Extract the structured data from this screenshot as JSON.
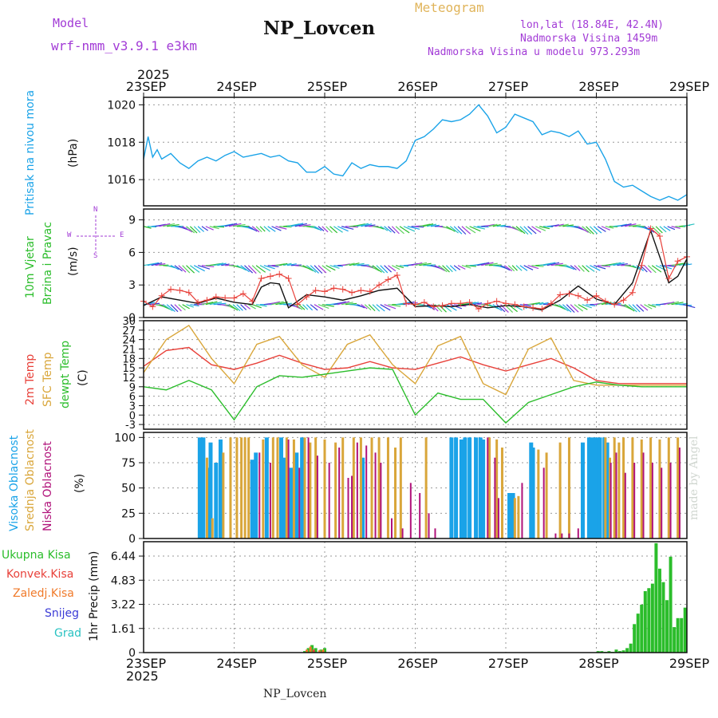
{
  "header": {
    "model_label": "Model",
    "model_name": "wrf-nmm_v3.9.1 e3km",
    "title": "NP_Lovcen",
    "subtitle": "Meteogram",
    "lonlat": "lon,lat (18.84E, 42.4N)",
    "altitude": "Nadmorska Visina 1459m",
    "altitude_model": "Nadmorska Visina u modelu 973.293m",
    "year_top": "2025",
    "year_bottom": "2025",
    "footer_station": "NP_Lovcen",
    "watermark": "made by Angel"
  },
  "colors": {
    "pressure": "#1aa3e8",
    "temp2m": "#e8413a",
    "sfc": "#d9a63a",
    "dewpt": "#2bbd2b",
    "wind_obs": "#111111",
    "wind_model": "#e8413a",
    "high_cloud": "#1aa3e8",
    "mid_cloud": "#d9a63a",
    "low_cloud": "#b0127a",
    "total_precip": "#2bbd2b",
    "conv_precip": "#e8413a",
    "frz_precip": "#f07a2a",
    "snow": "#3b3bd6",
    "graupel": "#29c2c2",
    "header_purple": "#a23bd6",
    "header_gold": "#e0b45a"
  },
  "time_axis": {
    "top_labels": [
      "23SEP",
      "24SEP",
      "25SEP",
      "26SEP",
      "27SEP",
      "28SEP",
      "29SEP"
    ],
    "bottom_labels": [
      "23SEP",
      "24SEP",
      "25SEP",
      "26SEP",
      "27SEP",
      "28SEP",
      "29SEP"
    ],
    "days": 6
  },
  "panels": {
    "pressure": {
      "ylabel_outer": "Pritisak na nivou mora",
      "ylabel_unit": "(hPa)",
      "ticks": [
        "1016",
        "1018",
        "1020"
      ]
    },
    "wind": {
      "ylabel_outer1": "10m Vjetar",
      "ylabel_outer2": "Brzina i Pravac",
      "ylabel_unit": "(m/s)",
      "ticks": [
        "0",
        "3",
        "6",
        "9"
      ],
      "compass_n": "N",
      "compass_s": "S",
      "compass_w": "W",
      "compass_e": "E"
    },
    "temp": {
      "ylabel_2m": "2m Temp",
      "ylabel_sfc": "SFC Temp",
      "ylabel_dew": "dewpt Temp",
      "ylabel_unit": "(C)",
      "ticks": [
        "-3",
        "0",
        "3",
        "6",
        "9",
        "12",
        "15",
        "18",
        "21",
        "24",
        "27",
        "30"
      ]
    },
    "cloud": {
      "ylabel_high": "Visoka Oblacnost",
      "ylabel_mid": "Srednja Oblacnost",
      "ylabel_low": "Niska Oblacnost",
      "ylabel_unit": "(%)",
      "ticks": [
        "0",
        "25",
        "50",
        "75",
        "100"
      ]
    },
    "precip": {
      "ylabel_unit": "1hr Precip (mm)",
      "ticks": [
        "0",
        "1.61",
        "3.22",
        "4.83",
        "6.44"
      ],
      "legend": [
        "Ukupna Kisa",
        "Konvek.Kisa",
        "Zaledj.Kisa",
        "Snijeg",
        "Grad"
      ]
    }
  },
  "chart_data": [
    {
      "type": "line",
      "title": "Pritisak na nivou mora",
      "ylabel": "(hPa)",
      "ylim": [
        1014.6,
        1020.4
      ],
      "x_days": [
        0,
        0.05,
        0.1,
        0.15,
        0.2,
        0.3,
        0.4,
        0.5,
        0.6,
        0.7,
        0.8,
        0.9,
        1.0,
        1.1,
        1.2,
        1.3,
        1.4,
        1.5,
        1.6,
        1.7,
        1.8,
        1.9,
        2.0,
        2.1,
        2.2,
        2.3,
        2.4,
        2.5,
        2.6,
        2.7,
        2.8,
        2.9,
        3.0,
        3.1,
        3.2,
        3.3,
        3.4,
        3.5,
        3.6,
        3.7,
        3.8,
        3.9,
        4.0,
        4.1,
        4.2,
        4.3,
        4.4,
        4.5,
        4.6,
        4.7,
        4.8,
        4.9,
        5.0,
        5.1,
        5.2,
        5.3,
        5.4,
        5.5,
        5.6,
        5.7,
        5.8,
        5.9,
        6.0
      ],
      "values": [
        1017.1,
        1018.3,
        1017.2,
        1017.6,
        1017.1,
        1017.4,
        1016.9,
        1016.6,
        1017.0,
        1017.2,
        1017.0,
        1017.3,
        1017.5,
        1017.2,
        1017.3,
        1017.4,
        1017.2,
        1017.3,
        1017.0,
        1016.9,
        1016.4,
        1016.4,
        1016.7,
        1016.3,
        1016.2,
        1016.9,
        1016.6,
        1016.8,
        1016.7,
        1016.7,
        1016.6,
        1017.0,
        1018.1,
        1018.3,
        1018.7,
        1019.2,
        1019.1,
        1019.2,
        1019.5,
        1020.0,
        1019.4,
        1018.5,
        1018.8,
        1019.5,
        1019.3,
        1019.1,
        1018.4,
        1018.6,
        1018.5,
        1018.3,
        1018.6,
        1017.9,
        1018.0,
        1017.1,
        1015.9,
        1015.6,
        1015.7,
        1015.4,
        1015.1,
        1014.9,
        1015.1,
        1014.9,
        1015.2
      ]
    },
    {
      "type": "line",
      "title": "10m Vjetar Brzina i Pravac",
      "ylabel": "(m/s)",
      "ylim": [
        0,
        10
      ],
      "series": [
        {
          "name": "model wind speed",
          "x_days": [
            0,
            0.1,
            0.2,
            0.3,
            0.4,
            0.5,
            0.6,
            0.7,
            0.8,
            0.9,
            1.0,
            1.1,
            1.2,
            1.3,
            1.4,
            1.5,
            1.6,
            1.7,
            1.8,
            1.9,
            2.0,
            2.1,
            2.2,
            2.3,
            2.4,
            2.5,
            2.6,
            2.7,
            2.8,
            2.9,
            3.0,
            3.1,
            3.2,
            3.3,
            3.4,
            3.5,
            3.6,
            3.7,
            3.8,
            3.9,
            4.0,
            4.1,
            4.2,
            4.3,
            4.4,
            4.5,
            4.6,
            4.7,
            4.8,
            4.9,
            5.0,
            5.1,
            5.2,
            5.3,
            5.4,
            5.5,
            5.6,
            5.7,
            5.8,
            5.9,
            6.0
          ],
          "values": [
            1.5,
            1.0,
            2.0,
            2.6,
            2.5,
            2.3,
            1.4,
            1.6,
            1.9,
            1.8,
            1.8,
            2.2,
            1.5,
            3.6,
            3.8,
            4.0,
            3.6,
            1.2,
            1.9,
            2.5,
            2.4,
            2.7,
            2.6,
            2.3,
            2.5,
            2.4,
            3.0,
            3.5,
            3.9,
            1.3,
            1.2,
            1.4,
            1.0,
            1.1,
            1.3,
            1.3,
            1.4,
            0.8,
            1.3,
            1.5,
            1.3,
            1.2,
            1.0,
            0.9,
            0.8,
            1.3,
            2.1,
            2.2,
            2.0,
            1.6,
            2.0,
            1.5,
            1.2,
            1.6,
            2.3,
            4.8,
            8.2,
            7.5,
            3.6,
            5.2,
            5.6
          ]
        },
        {
          "name": "observed wind speed",
          "x_days": [
            0,
            0.2,
            0.4,
            0.6,
            0.8,
            1.0,
            1.2,
            1.3,
            1.4,
            1.5,
            1.6,
            1.8,
            2.0,
            2.2,
            2.4,
            2.6,
            2.8,
            3.0,
            3.2,
            3.4,
            3.6,
            3.8,
            4.0,
            4.2,
            4.4,
            4.6,
            4.8,
            5.0,
            5.2,
            5.4,
            5.6,
            5.8,
            5.9,
            6.0
          ],
          "values": [
            1.1,
            1.9,
            1.6,
            1.3,
            1.8,
            1.4,
            1.2,
            2.8,
            3.2,
            3.1,
            0.9,
            2.1,
            1.9,
            1.6,
            2.0,
            2.5,
            2.7,
            1.0,
            1.1,
            1.0,
            1.2,
            0.9,
            1.1,
            1.0,
            0.7,
            1.6,
            2.9,
            1.7,
            1.2,
            3.2,
            8.0,
            3.2,
            3.8,
            5.4
          ]
        }
      ]
    },
    {
      "type": "line",
      "title": "Temperature",
      "ylabel": "(C)",
      "ylim": [
        -4.5,
        30
      ],
      "x_days": [
        0,
        0.25,
        0.5,
        0.75,
        1.0,
        1.25,
        1.5,
        1.75,
        2.0,
        2.25,
        2.5,
        2.75,
        3.0,
        3.25,
        3.5,
        3.75,
        4.0,
        4.25,
        4.5,
        4.75,
        5.0,
        5.25,
        5.5,
        5.75,
        6.0
      ],
      "series": [
        {
          "name": "2m Temp",
          "values": [
            15.5,
            20.5,
            21.5,
            16.0,
            14.5,
            16.5,
            19.0,
            16.5,
            14.5,
            15.0,
            17.0,
            15.0,
            14.5,
            16.5,
            18.5,
            16.0,
            14.0,
            16.0,
            18.0,
            15.0,
            11.0,
            10.0,
            10.0,
            10.0,
            10.0
          ]
        },
        {
          "name": "SFC Temp",
          "values": [
            13.5,
            24.0,
            28.5,
            18.0,
            10.0,
            22.5,
            25.0,
            16.0,
            12.0,
            22.5,
            25.5,
            16.0,
            10.0,
            22.0,
            25.0,
            10.0,
            6.5,
            21.0,
            24.5,
            11.0,
            9.5,
            9.5,
            9.5,
            9.5,
            9.5
          ]
        },
        {
          "name": "dewpt Temp",
          "values": [
            9.0,
            8.0,
            11.0,
            8.0,
            -1.5,
            9.0,
            12.5,
            12.0,
            13.0,
            14.0,
            15.0,
            14.5,
            0.0,
            7.0,
            5.0,
            5.0,
            -2.5,
            4.0,
            6.5,
            9.0,
            10.5,
            9.5,
            9.0,
            9.0,
            9.0
          ]
        }
      ]
    },
    {
      "type": "bar",
      "title": "Oblacnost",
      "ylabel": "(%)",
      "ylim": [
        0,
        100
      ],
      "series": [
        {
          "name": "Visoka Oblacnost",
          "x_days": [
            0.62,
            0.66,
            0.71,
            0.74,
            0.8,
            0.85,
            1.2,
            1.24,
            1.36,
            1.52,
            1.56,
            1.63,
            1.69,
            1.75,
            2.42,
            3.4,
            3.45,
            3.51,
            3.55,
            3.6,
            3.67,
            3.72,
            3.75,
            4.04,
            4.08,
            4.28,
            4.3,
            4.85,
            4.92,
            4.96,
            5.0,
            5.04,
            5.09,
            5.12
          ],
          "values": [
            100,
            100,
            70,
            95,
            75,
            98,
            78,
            85,
            100,
            100,
            80,
            70,
            85,
            100,
            80,
            100,
            100,
            98,
            100,
            100,
            100,
            100,
            98,
            45,
            45,
            95,
            90,
            95,
            100,
            100,
            100,
            100,
            100,
            95
          ]
        },
        {
          "name": "Srednja Oblacnost",
          "x_days": [
            0.7,
            0.76,
            0.88,
            0.96,
            1.03,
            1.08,
            1.12,
            1.16,
            1.32,
            1.43,
            1.48,
            1.58,
            1.66,
            1.78,
            1.84,
            1.9,
            2.0,
            2.12,
            2.2,
            2.32,
            2.4,
            2.52,
            2.6,
            2.7,
            2.78,
            2.84,
            3.12,
            3.82,
            3.9,
            3.96,
            4.1,
            4.14,
            4.36,
            4.45,
            4.6,
            4.7,
            5.1,
            5.15,
            5.2,
            5.25,
            5.3,
            5.4,
            5.5,
            5.6,
            5.7,
            5.8,
            5.9
          ],
          "values": [
            80,
            20,
            85,
            100,
            100,
            100,
            100,
            100,
            98,
            100,
            100,
            100,
            98,
            100,
            95,
            100,
            98,
            95,
            100,
            100,
            100,
            100,
            100,
            100,
            90,
            100,
            100,
            100,
            98,
            90,
            40,
            42,
            88,
            85,
            95,
            100,
            100,
            80,
            100,
            95,
            100,
            100,
            98,
            100,
            98,
            100,
            100
          ]
        },
        {
          "name": "Niska Oblacnost",
          "x_days": [
            1.28,
            1.4,
            1.6,
            1.72,
            1.82,
            1.92,
            2.05,
            2.16,
            2.26,
            2.3,
            2.36,
            2.46,
            2.56,
            2.62,
            2.74,
            2.86,
            2.95,
            3.05,
            3.15,
            3.22,
            3.8,
            3.88,
            3.92,
            4.18,
            4.42,
            4.55,
            4.62,
            4.7,
            4.8,
            5.16,
            5.22,
            5.32,
            5.42,
            5.52,
            5.62,
            5.72,
            5.82,
            5.92
          ],
          "values": [
            85,
            75,
            98,
            70,
            100,
            82,
            75,
            90,
            60,
            62,
            95,
            92,
            85,
            75,
            20,
            10,
            55,
            45,
            25,
            10,
            100,
            80,
            40,
            55,
            70,
            5,
            5,
            5,
            10,
            75,
            85,
            65,
            75,
            85,
            75,
            70,
            75,
            90
          ]
        }
      ]
    },
    {
      "type": "bar",
      "title": "1hr Precip",
      "ylabel": "(mm)",
      "ylim": [
        0,
        7.4
      ],
      "series": [
        {
          "name": "Ukupna Kisa",
          "x_days": [
            1.78,
            1.82,
            1.86,
            1.9,
            1.96,
            2.0,
            5.02,
            5.06,
            5.1,
            5.14,
            5.18,
            5.22,
            5.26,
            5.3,
            5.34,
            5.38,
            5.42,
            5.46,
            5.5,
            5.54,
            5.58,
            5.62,
            5.66,
            5.7,
            5.74,
            5.78,
            5.82,
            5.86,
            5.9,
            5.94,
            5.98
          ],
          "values": [
            0.1,
            0.3,
            0.5,
            0.3,
            0.2,
            0.3,
            0.1,
            0.1,
            0.05,
            0.1,
            0.05,
            0.2,
            0.1,
            0.15,
            0.3,
            0.6,
            1.9,
            2.6,
            3.2,
            4.1,
            4.3,
            4.6,
            7.3,
            5.6,
            4.7,
            3.5,
            6.4,
            1.7,
            2.3,
            2.3,
            3.0
          ]
        },
        {
          "name": "Konvek.Kisa",
          "x_days": [
            1.86,
            1.96
          ],
          "values": [
            0.2,
            0.1
          ]
        },
        {
          "name": "Zaledj.Kisa",
          "x_days": [
            1.82,
            1.86,
            1.96,
            2.0
          ],
          "values": [
            0.2,
            0.4,
            0.15,
            0.2
          ]
        },
        {
          "name": "Snijeg",
          "x_days": [],
          "values": []
        },
        {
          "name": "Grad",
          "x_days": [],
          "values": []
        }
      ]
    }
  ]
}
